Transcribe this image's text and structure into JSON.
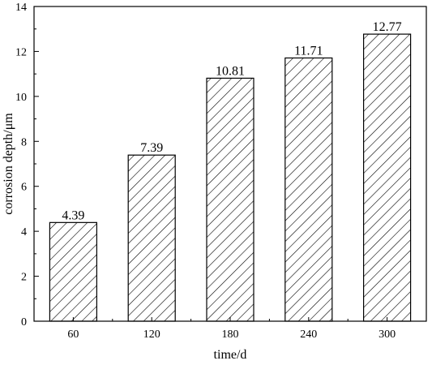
{
  "chart_data": {
    "type": "bar",
    "categories": [
      "60",
      "120",
      "180",
      "240",
      "300"
    ],
    "values": [
      4.39,
      7.39,
      10.81,
      11.71,
      12.77
    ],
    "data_labels": [
      "4.39",
      "7.39",
      "10.81",
      "11.71",
      "12.77"
    ],
    "xlabel": "time/d",
    "ylabel": "corrosion depth/μm",
    "ylim": [
      0,
      14
    ],
    "yticks": [
      "0",
      "2",
      "4",
      "6",
      "8",
      "10",
      "12",
      "14"
    ],
    "grid": false,
    "legend": "none",
    "bar_fill": "diagonal-hatch",
    "colors": {
      "bar_stroke": "#000000",
      "hatch": "#000000",
      "background": "#ffffff"
    }
  }
}
